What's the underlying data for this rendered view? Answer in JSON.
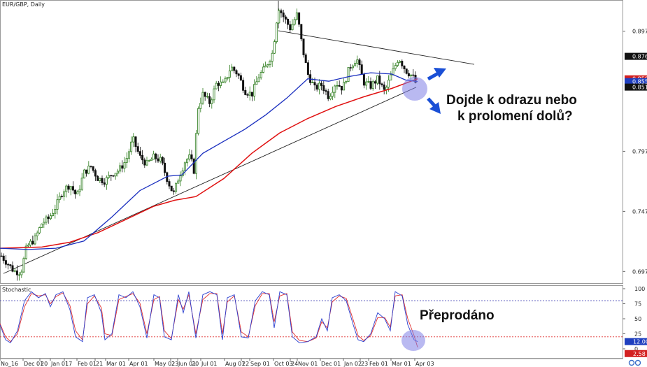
{
  "chart_data": [
    {
      "type": "candlestick",
      "title": "EUR/GBP, Daily",
      "y_ticks": [
        0.6977,
        0.7477,
        0.7977,
        0.8977
      ],
      "ylim": [
        0.688,
        0.923
      ],
      "price_badges": [
        {
          "value": "0.8767",
          "bg": "#111111",
          "fg": "#ffffff"
        },
        {
          "value": "0.8580",
          "bg": "#d32020",
          "fg": "#ffffff"
        },
        {
          "value": "0.8557",
          "bg": "#1f3fbf",
          "fg": "#ffffff"
        },
        {
          "value": "0.8511",
          "bg": "#111111",
          "fg": "#ffffff"
        }
      ],
      "x_labels": [
        "No_16",
        "Dec 01",
        "20",
        "Jan 01",
        "17",
        "Feb 01",
        "21",
        "Mar 01",
        "Apr 01",
        "May 02",
        "23",
        "Jun 01",
        "20",
        "Jul 01",
        "Aug 01",
        "22",
        "Sep 01",
        "Oct 03",
        "24",
        "Nov 01",
        "Dec 01",
        "Jan 02",
        "23",
        "Feb 01",
        "Mar 01",
        "Apr 03"
      ],
      "annotations": [
        "Dojde k odrazu nebo",
        "k prolomení dolů?"
      ],
      "colors": {
        "bull": "#2e7d1e",
        "bear": "#111111",
        "ma_fast": "#1a2fbf",
        "ma_slow": "#e01010",
        "trendline": "#222222",
        "highlight": "#7f7fe0"
      },
      "price_series": [
        [
          0,
          0.712
        ],
        [
          10,
          0.705
        ],
        [
          20,
          0.698
        ],
        [
          30,
          0.697
        ],
        [
          38,
          0.718
        ],
        [
          50,
          0.725
        ],
        [
          60,
          0.738
        ],
        [
          70,
          0.742
        ],
        [
          80,
          0.752
        ],
        [
          90,
          0.765
        ],
        [
          100,
          0.77
        ],
        [
          110,
          0.76
        ],
        [
          120,
          0.78
        ],
        [
          130,
          0.785
        ],
        [
          140,
          0.775
        ],
        [
          150,
          0.773
        ],
        [
          160,
          0.779
        ],
        [
          170,
          0.782
        ],
        [
          180,
          0.79
        ],
        [
          190,
          0.808
        ],
        [
          200,
          0.793
        ],
        [
          210,
          0.787
        ],
        [
          220,
          0.793
        ],
        [
          230,
          0.79
        ],
        [
          240,
          0.773
        ],
        [
          248,
          0.762
        ],
        [
          255,
          0.775
        ],
        [
          265,
          0.79
        ],
        [
          272,
          0.793
        ],
        [
          278,
          0.78
        ],
        [
          282,
          0.832
        ],
        [
          290,
          0.845
        ],
        [
          300,
          0.838
        ],
        [
          310,
          0.855
        ],
        [
          320,
          0.853
        ],
        [
          330,
          0.868
        ],
        [
          340,
          0.862
        ],
        [
          350,
          0.848
        ],
        [
          360,
          0.845
        ],
        [
          370,
          0.86
        ],
        [
          380,
          0.868
        ],
        [
          390,
          0.88
        ],
        [
          398,
          0.918
        ],
        [
          405,
          0.91
        ],
        [
          415,
          0.9
        ],
        [
          425,
          0.912
        ],
        [
          432,
          0.885
        ],
        [
          440,
          0.862
        ],
        [
          450,
          0.85
        ],
        [
          460,
          0.853
        ],
        [
          470,
          0.843
        ],
        [
          480,
          0.855
        ],
        [
          490,
          0.85
        ],
        [
          500,
          0.868
        ],
        [
          510,
          0.875
        ],
        [
          520,
          0.855
        ],
        [
          530,
          0.852
        ],
        [
          540,
          0.858
        ],
        [
          550,
          0.847
        ],
        [
          560,
          0.862
        ],
        [
          570,
          0.876
        ],
        [
          580,
          0.865
        ],
        [
          590,
          0.86
        ],
        [
          597,
          0.851
        ]
      ],
      "ma_fast": [
        [
          0,
          0.717
        ],
        [
          40,
          0.716
        ],
        [
          80,
          0.717
        ],
        [
          120,
          0.723
        ],
        [
          160,
          0.743
        ],
        [
          200,
          0.765
        ],
        [
          240,
          0.777
        ],
        [
          260,
          0.778
        ],
        [
          290,
          0.796
        ],
        [
          320,
          0.806
        ],
        [
          350,
          0.816
        ],
        [
          380,
          0.828
        ],
        [
          410,
          0.842
        ],
        [
          440,
          0.858
        ],
        [
          470,
          0.856
        ],
        [
          500,
          0.86
        ],
        [
          530,
          0.863
        ],
        [
          560,
          0.862
        ],
        [
          580,
          0.857
        ],
        [
          597,
          0.8557
        ]
      ],
      "ma_slow": [
        [
          0,
          0.717
        ],
        [
          60,
          0.718
        ],
        [
          100,
          0.722
        ],
        [
          140,
          0.73
        ],
        [
          180,
          0.741
        ],
        [
          220,
          0.752
        ],
        [
          250,
          0.757
        ],
        [
          280,
          0.76
        ],
        [
          320,
          0.775
        ],
        [
          360,
          0.796
        ],
        [
          400,
          0.813
        ],
        [
          440,
          0.825
        ],
        [
          480,
          0.835
        ],
        [
          520,
          0.843
        ],
        [
          560,
          0.85
        ],
        [
          597,
          0.858
        ]
      ],
      "trendlines": [
        [
          [
            5,
            0.696
          ],
          [
            595,
            0.851
          ]
        ],
        [
          [
            398,
            0.898
          ],
          [
            678,
            0.87
          ]
        ],
        [
          [
            398,
            0.923
          ],
          [
            398,
            0.9
          ]
        ]
      ]
    },
    {
      "type": "line",
      "title": "Stochastic",
      "y_ticks": [
        100,
        75,
        50,
        25,
        0
      ],
      "ylim": [
        0,
        100
      ],
      "levels": [
        80,
        20
      ],
      "value_badges": [
        {
          "value": "12.00",
          "bg": "#1f3fbf",
          "fg": "#ffffff"
        },
        {
          "value": "2.58",
          "bg": "#d32020",
          "fg": "#ffffff"
        }
      ],
      "annotations": [
        "Přeprodáno"
      ],
      "k_series": [
        [
          0,
          40
        ],
        [
          8,
          15
        ],
        [
          15,
          10
        ],
        [
          25,
          30
        ],
        [
          35,
          80
        ],
        [
          45,
          95
        ],
        [
          55,
          85
        ],
        [
          65,
          92
        ],
        [
          72,
          70
        ],
        [
          80,
          90
        ],
        [
          90,
          95
        ],
        [
          100,
          65
        ],
        [
          108,
          20
        ],
        [
          118,
          12
        ],
        [
          125,
          85
        ],
        [
          135,
          90
        ],
        [
          145,
          60
        ],
        [
          150,
          15
        ],
        [
          160,
          25
        ],
        [
          170,
          90
        ],
        [
          180,
          85
        ],
        [
          190,
          95
        ],
        [
          200,
          70
        ],
        [
          210,
          18
        ],
        [
          220,
          90
        ],
        [
          228,
          85
        ],
        [
          235,
          20
        ],
        [
          245,
          15
        ],
        [
          255,
          90
        ],
        [
          262,
          60
        ],
        [
          270,
          95
        ],
        [
          280,
          18
        ],
        [
          290,
          90
        ],
        [
          300,
          95
        ],
        [
          310,
          90
        ],
        [
          318,
          15
        ],
        [
          325,
          85
        ],
        [
          335,
          90
        ],
        [
          345,
          20
        ],
        [
          355,
          18
        ],
        [
          365,
          80
        ],
        [
          375,
          95
        ],
        [
          385,
          90
        ],
        [
          392,
          35
        ],
        [
          400,
          95
        ],
        [
          410,
          90
        ],
        [
          418,
          20
        ],
        [
          428,
          10
        ],
        [
          440,
          12
        ],
        [
          452,
          20
        ],
        [
          460,
          50
        ],
        [
          468,
          30
        ],
        [
          475,
          85
        ],
        [
          485,
          90
        ],
        [
          495,
          80
        ],
        [
          505,
          40
        ],
        [
          512,
          15
        ],
        [
          520,
          12
        ],
        [
          530,
          25
        ],
        [
          540,
          60
        ],
        [
          550,
          50
        ],
        [
          558,
          30
        ],
        [
          565,
          95
        ],
        [
          575,
          88
        ],
        [
          583,
          40
        ],
        [
          592,
          15
        ],
        [
          597,
          12
        ]
      ],
      "d_series": [
        [
          0,
          42
        ],
        [
          8,
          20
        ],
        [
          15,
          12
        ],
        [
          25,
          25
        ],
        [
          35,
          70
        ],
        [
          45,
          92
        ],
        [
          55,
          88
        ],
        [
          65,
          90
        ],
        [
          72,
          75
        ],
        [
          80,
          87
        ],
        [
          90,
          93
        ],
        [
          100,
          72
        ],
        [
          108,
          30
        ],
        [
          118,
          15
        ],
        [
          125,
          75
        ],
        [
          135,
          88
        ],
        [
          145,
          68
        ],
        [
          150,
          25
        ],
        [
          160,
          22
        ],
        [
          170,
          82
        ],
        [
          180,
          87
        ],
        [
          190,
          92
        ],
        [
          200,
          76
        ],
        [
          210,
          25
        ],
        [
          220,
          82
        ],
        [
          228,
          87
        ],
        [
          235,
          30
        ],
        [
          245,
          17
        ],
        [
          255,
          82
        ],
        [
          262,
          66
        ],
        [
          270,
          90
        ],
        [
          280,
          25
        ],
        [
          290,
          82
        ],
        [
          300,
          92
        ],
        [
          310,
          92
        ],
        [
          318,
          25
        ],
        [
          325,
          78
        ],
        [
          335,
          88
        ],
        [
          345,
          28
        ],
        [
          355,
          20
        ],
        [
          365,
          72
        ],
        [
          375,
          92
        ],
        [
          385,
          92
        ],
        [
          392,
          45
        ],
        [
          400,
          88
        ],
        [
          410,
          92
        ],
        [
          418,
          28
        ],
        [
          428,
          14
        ],
        [
          440,
          12
        ],
        [
          452,
          18
        ],
        [
          460,
          45
        ],
        [
          468,
          35
        ],
        [
          475,
          78
        ],
        [
          485,
          88
        ],
        [
          495,
          84
        ],
        [
          505,
          48
        ],
        [
          512,
          22
        ],
        [
          520,
          14
        ],
        [
          530,
          22
        ],
        [
          540,
          52
        ],
        [
          550,
          52
        ],
        [
          558,
          36
        ],
        [
          565,
          88
        ],
        [
          575,
          90
        ],
        [
          583,
          50
        ],
        [
          592,
          22
        ],
        [
          597,
          2.58
        ]
      ]
    }
  ]
}
